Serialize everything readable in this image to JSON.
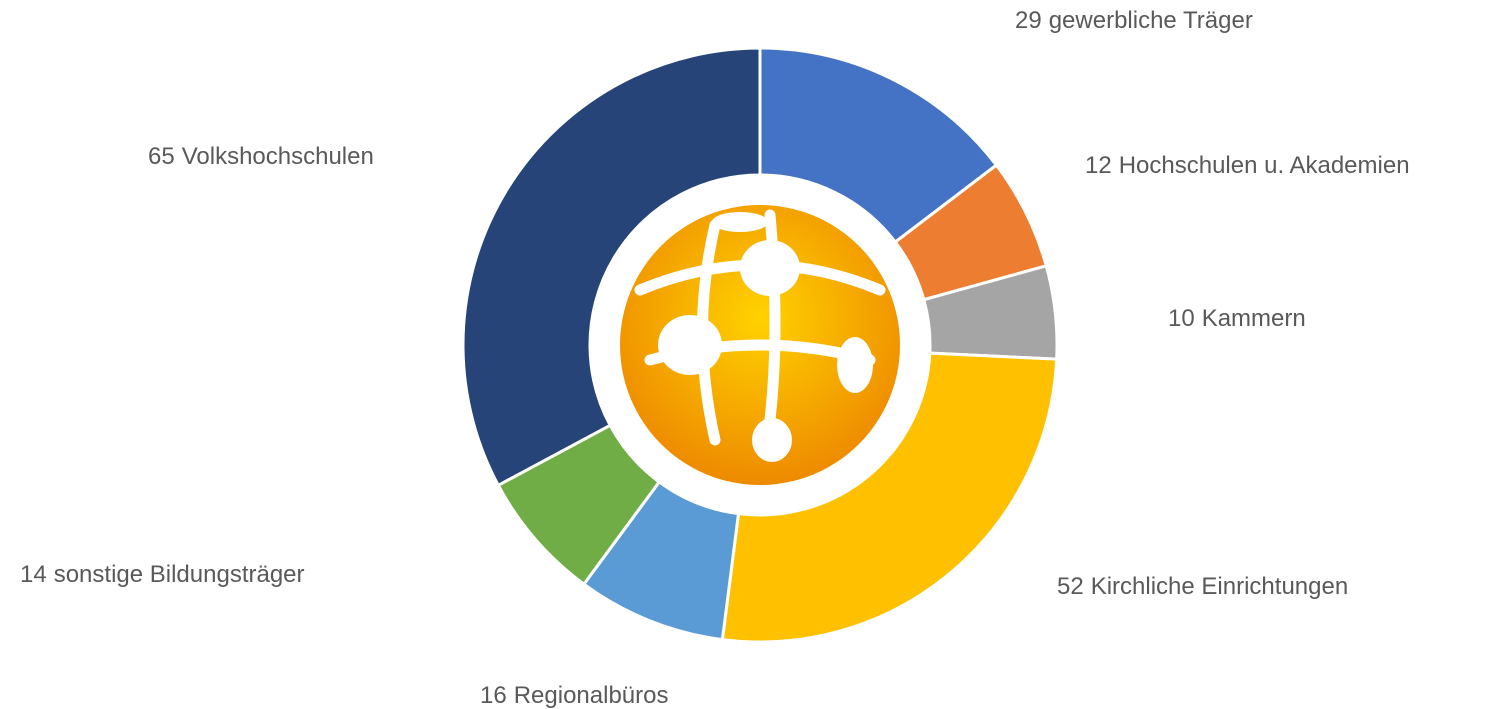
{
  "chart_data": {
    "type": "donut",
    "categories": [
      "gewerbliche Träger",
      "Hochschulen u. Akademien",
      "Kammern",
      "Kirchliche Einrichtungen",
      "Regionalbüros",
      "sonstige Bildungsträger",
      "Volkshochschulen"
    ],
    "values": [
      29,
      12,
      10,
      52,
      16,
      14,
      65
    ],
    "colors": [
      "#4472C4",
      "#ED7D31",
      "#A5A5A5",
      "#FFC000",
      "#5B9BD5",
      "#70AD47",
      "#264478"
    ]
  }
}
